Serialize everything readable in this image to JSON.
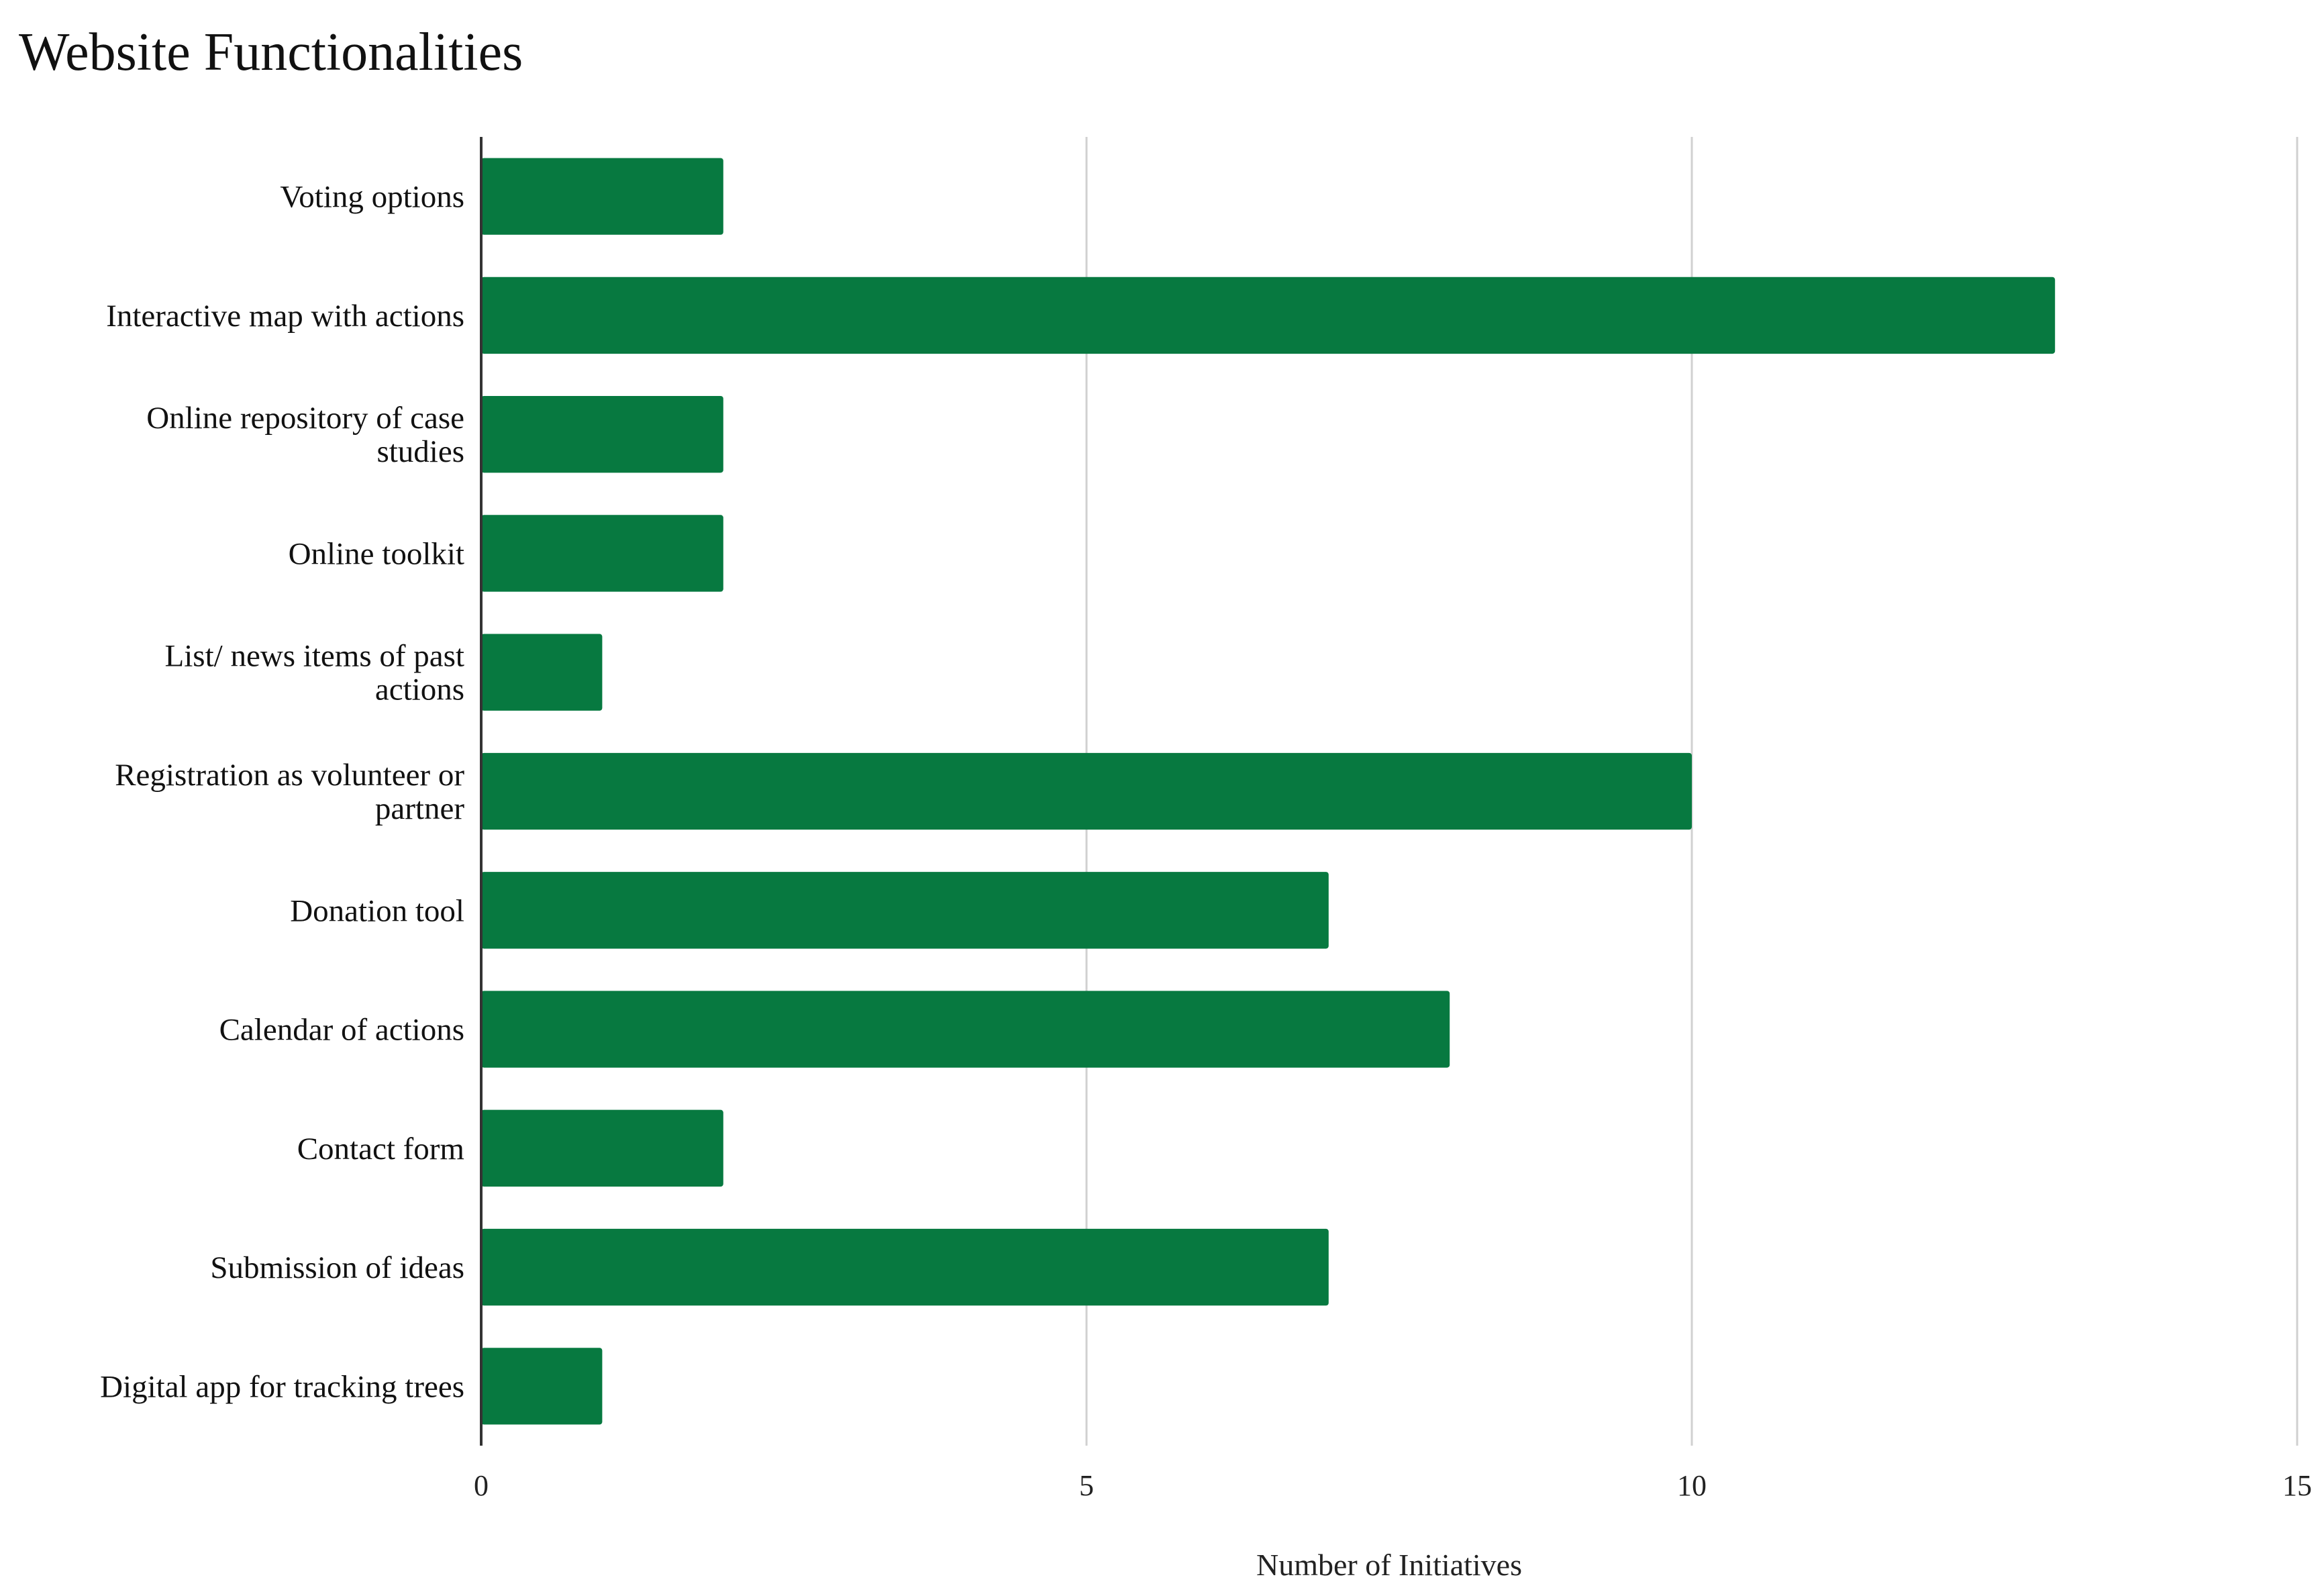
{
  "chart_data": {
    "type": "bar",
    "orientation": "horizontal",
    "title": "Website Functionalities",
    "xlabel": "Number of Initiatives",
    "ylabel": "",
    "categories": [
      "Voting options",
      "Interactive map with actions",
      "Online repository of case studies",
      "Online toolkit",
      "List/ news items of past actions",
      "Registration as volunteer or partner",
      "Donation tool",
      "Calendar of actions",
      "Contact form",
      "Submission of ideas",
      "Digital app for tracking trees"
    ],
    "category_lines": [
      [
        "Voting options"
      ],
      [
        "Interactive map with actions"
      ],
      [
        "Online repository of case",
        "studies"
      ],
      [
        "Online toolkit"
      ],
      [
        "List/ news items of past",
        "actions"
      ],
      [
        "Registration as volunteer or",
        "partner"
      ],
      [
        "Donation tool"
      ],
      [
        "Calendar of actions"
      ],
      [
        "Contact form"
      ],
      [
        "Submission of ideas"
      ],
      [
        "Digital app for tracking trees"
      ]
    ],
    "values": [
      2,
      13,
      2,
      2,
      1,
      10,
      7,
      8,
      2,
      7,
      1
    ],
    "xlim": [
      0,
      15
    ],
    "xticks": [
      "0",
      "5",
      "10",
      "15"
    ],
    "grid": "vertical",
    "legend": "none",
    "bar_color": "#077940",
    "grid_color": "#d0d0d0",
    "axis_color": "#333333"
  }
}
